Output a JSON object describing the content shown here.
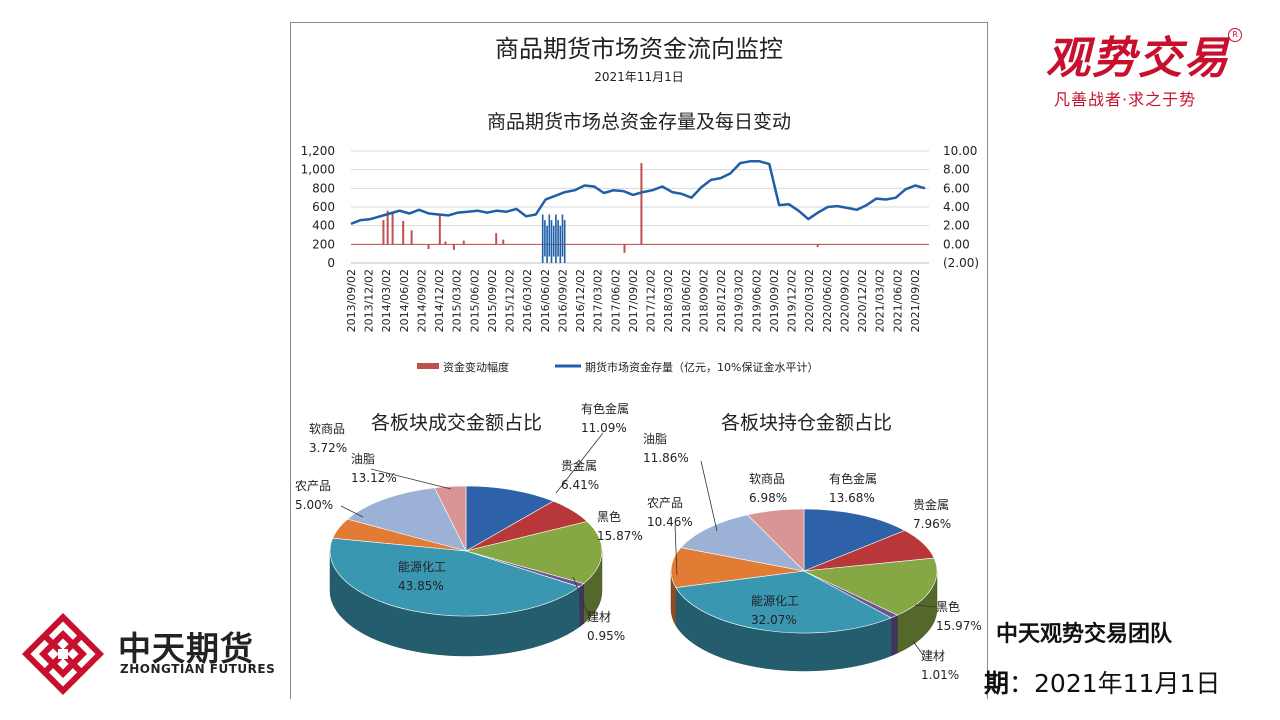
{
  "header": {
    "title": "商品期货市场资金流向监控",
    "date": "2021年11月1日"
  },
  "brand": {
    "name": "观势交易",
    "slogan": "凡善战者·求之于势",
    "color": "#c8102e"
  },
  "company": {
    "name": "中天期货",
    "name_en": "ZHONGTIAN FUTURES"
  },
  "footer": {
    "team": "中天观势交易团队",
    "date_label": "期",
    "date_value": "：2021年11月1日"
  },
  "chart_data": [
    {
      "type": "line",
      "title": "商品期货市场总资金存量及每日变动",
      "y_left": {
        "min": 0,
        "max": 1200,
        "ticks": [
          "0",
          "200",
          "400",
          "600",
          "800",
          "1,000",
          "1,200"
        ]
      },
      "y_right": {
        "min": -2,
        "max": 10,
        "ticks": [
          "(2.00)",
          "0.00",
          "2.00",
          "4.00",
          "6.00",
          "8.00",
          "10.00"
        ]
      },
      "x_labels": [
        "2013/09/02",
        "2013/12/02",
        "2014/03/02",
        "2014/06/02",
        "2014/09/02",
        "2014/12/02",
        "2015/03/02",
        "2015/06/02",
        "2015/09/02",
        "2015/12/02",
        "2016/03/02",
        "2016/06/02",
        "2016/09/02",
        "2016/12/02",
        "2017/03/02",
        "2017/06/02",
        "2017/09/02",
        "2017/12/02",
        "2018/03/02",
        "2018/06/02",
        "2018/09/02",
        "2018/12/02",
        "2019/03/02",
        "2019/06/02",
        "2019/09/02",
        "2019/12/02",
        "2020/03/02",
        "2020/06/02",
        "2020/09/02",
        "2020/12/02",
        "2021/03/02",
        "2021/06/02",
        "2021/09/02"
      ],
      "series": [
        {
          "name": "期货市场资金存量（亿元，10%保证金水平计）",
          "type": "line",
          "color": "#1f5fa8",
          "axis": "left",
          "values": [
            420,
            460,
            470,
            500,
            530,
            560,
            530,
            570,
            530,
            520,
            510,
            540,
            550,
            560,
            540,
            560,
            550,
            580,
            500,
            520,
            680,
            720,
            760,
            780,
            830,
            820,
            750,
            780,
            770,
            730,
            760,
            780,
            820,
            760,
            740,
            700,
            810,
            890,
            910,
            960,
            1070,
            1090,
            1090,
            1060,
            620,
            630,
            560,
            470,
            540,
            600,
            610,
            590,
            570,
            620,
            690,
            680,
            700,
            790,
            830,
            800
          ]
        },
        {
          "name": "资金变动幅度",
          "type": "bar",
          "color": "#c0504d",
          "axis": "right",
          "spikes": [
            {
              "x": 0.46,
              "value": 2.6
            },
            {
              "x": 0.52,
              "value": 3.6
            },
            {
              "x": 0.59,
              "value": 3.5
            },
            {
              "x": 0.74,
              "value": 2.5
            },
            {
              "x": 0.86,
              "value": 1.5
            },
            {
              "x": 1.1,
              "value": -0.5
            },
            {
              "x": 1.26,
              "value": 3.2
            },
            {
              "x": 1.34,
              "value": 0.3
            },
            {
              "x": 1.46,
              "value": -0.6
            },
            {
              "x": 1.6,
              "value": 0.4
            },
            {
              "x": 2.06,
              "value": 1.2
            },
            {
              "x": 2.16,
              "value": 0.5
            },
            {
              "x": 3.88,
              "value": -0.9
            },
            {
              "x": 4.12,
              "value": 8.7
            },
            {
              "x": 6.62,
              "value": -0.3
            }
          ],
          "unstable_window": {
            "from": 2.72,
            "to": 3.05,
            "min_left": 0,
            "max_left": 520
          }
        }
      ],
      "legend": [
        "资金变动幅度",
        "期货市场资金存量（亿元，10%保证金水平计）"
      ],
      "legend_position": "bottom"
    },
    {
      "type": "pie",
      "title": "各板块成交金额占比",
      "slices": [
        {
          "label": "有色金属",
          "value": 11.09,
          "display": "11.09%",
          "color": "#2e62a8"
        },
        {
          "label": "贵金属",
          "value": 6.41,
          "display": "6.41%",
          "color": "#b8383a"
        },
        {
          "label": "黑色",
          "value": 15.87,
          "display": "15.87%",
          "color": "#86a844"
        },
        {
          "label": "建材",
          "value": 0.95,
          "display": "0.95%",
          "color": "#6c5494"
        },
        {
          "label": "能源化工",
          "value": 43.85,
          "display": "43.85%",
          "color": "#3a97b1"
        },
        {
          "label": "农产品",
          "value": 5.0,
          "display": "5.00%",
          "color": "#e27c35"
        },
        {
          "label": "油脂",
          "value": 13.12,
          "display": "13.12%",
          "color": "#9bb2d6"
        },
        {
          "label": "软商品",
          "value": 3.72,
          "display": "3.72%",
          "color": "#d99494"
        }
      ]
    },
    {
      "type": "pie",
      "title": "各板块持仓金额占比",
      "slices": [
        {
          "label": "有色金属",
          "value": 13.68,
          "display": "13.68%",
          "color": "#2e62a8"
        },
        {
          "label": "贵金属",
          "value": 7.96,
          "display": "7.96%",
          "color": "#b8383a"
        },
        {
          "label": "黑色",
          "value": 15.97,
          "display": "15.97%",
          "color": "#86a844"
        },
        {
          "label": "建材",
          "value": 1.01,
          "display": "1.01%",
          "color": "#6c5494"
        },
        {
          "label": "能源化工",
          "value": 32.07,
          "display": "32.07%",
          "color": "#3a97b1"
        },
        {
          "label": "农产品",
          "value": 10.46,
          "display": "10.46%",
          "color": "#e27c35"
        },
        {
          "label": "油脂",
          "value": 11.86,
          "display": "11.86%",
          "color": "#9bb2d6"
        },
        {
          "label": "软商品",
          "value": 6.98,
          "display": "6.98%",
          "color": "#d99494"
        }
      ]
    }
  ]
}
